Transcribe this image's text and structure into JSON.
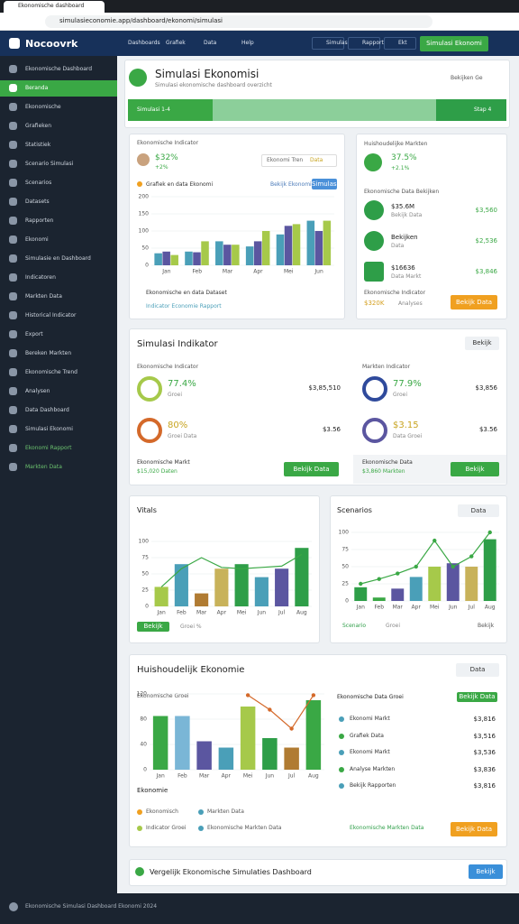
{
  "browser": {
    "tab": "Ekonomische dashboard",
    "url": "simulasieconomie.app/dashboard/ekonomi/simulasi"
  },
  "nav": {
    "brand": "Nocoovrk",
    "links": [
      "Dashboards",
      "Grafiek",
      "Data",
      "Help"
    ],
    "actions": [
      "Simulasi",
      "Rapport",
      "Ekt"
    ],
    "cta": "Simulasi Ekonomi"
  },
  "sidebar": {
    "active": 1,
    "items": [
      "Ekonomische Dashboard",
      "Beranda",
      "Ekonomische",
      "Grafieken",
      "Statistiek",
      "Scenario Simulasi",
      "Scenarios",
      "Datasets",
      "Rapporten",
      "Ekonomi",
      "Simulasie en Dashboard",
      "Indicatoren",
      "Markten Data",
      "Historical Indicator",
      "Export",
      "Bereken Markten",
      "Ekonomische Trend",
      "Analysen",
      "Data Dashboard",
      "Simulasi Ekonomi",
      "Ekonomi Rapport",
      "Markten Data"
    ]
  },
  "header": {
    "title": "Simulasi Ekonomisi",
    "subtitle": "Simulasi ekonomische dashboard overzicht",
    "link": "Bekijken Ge",
    "progress": {
      "start": "Simulasi 1-4",
      "end": "Stap 4"
    }
  },
  "indicator": {
    "title": "Ekonomische Indicator",
    "value": "$32%",
    "change": "+2%",
    "filter": [
      "Ekonomi Tren",
      "Data"
    ],
    "legend": "Grafiek en data Ekonomi",
    "select": "Bekijk Ekonomi",
    "button": "Simulasi",
    "notes": [
      "Ekonomische en data Dataset",
      "Indicator Economie Rapport"
    ],
    "chart": {
      "categories": [
        "Jan",
        "Feb",
        "Mar",
        "Apr",
        "Mei",
        "Jun"
      ],
      "values": [
        [
          35,
          40,
          30
        ],
        [
          40,
          38,
          70
        ],
        [
          70,
          60,
          60
        ],
        [
          55,
          70,
          100
        ],
        [
          90,
          115,
          120
        ],
        [
          130,
          100,
          130
        ]
      ],
      "colors": [
        "#4a9fb8",
        "#5b56a0",
        "#a6c94a"
      ],
      "ylim": [
        0,
        200
      ],
      "yticks": [
        0,
        50,
        100,
        150,
        200
      ]
    }
  },
  "markets": {
    "title": "Huishoudelijke Markten",
    "value": "37.5%",
    "change": "+2.1%",
    "subtitle": "Ekonomische Data Bekijken",
    "rows": [
      {
        "label": "$35.6M",
        "sub": "Bekijk Data",
        "value": "$3,560"
      },
      {
        "label": "Bekijken",
        "sub": "Data",
        "value": "$2,536"
      },
      {
        "label": "$16636",
        "sub": "Data Markt",
        "value": "$3,846"
      }
    ],
    "footer": {
      "label": "Ekonomische Indicator",
      "value": "$320K",
      "sub": "Analyses",
      "button": "Bekijk Data"
    }
  },
  "simulasi": {
    "title": "Simulasi Indikator",
    "button": "Bekijk",
    "left": {
      "title": "Ekonomische Indicator",
      "items": [
        {
          "value": "77.4%",
          "sub": "Groei",
          "amount": "$3,85,510"
        },
        {
          "value": "80%",
          "sub": "Groei Data",
          "amount": "$3.56"
        }
      ],
      "note": "Ekonomische Markt",
      "subnote": "$15,020 Daten",
      "button": "Bekijk Data"
    },
    "right": {
      "title": "Markten Indicator",
      "items": [
        {
          "value": "77.9%",
          "sub": "Groei",
          "amount": "$3,856"
        },
        {
          "value": "$3.15",
          "sub": "Data Groei",
          "amount": "$3.56"
        }
      ],
      "note": "Ekonomische Data",
      "subnote": "$3,860 Markten",
      "button": "Bekijk"
    }
  },
  "vitals": {
    "title": "Vitals",
    "button": "Bekijk",
    "sub": "Groei %",
    "chart": {
      "categories": [
        "Jan",
        "Feb",
        "Mar",
        "Apr",
        "Mei",
        "Jun",
        "Jul",
        "Aug"
      ],
      "values": [
        30,
        65,
        20,
        58,
        65,
        45,
        58,
        90
      ],
      "colors": [
        "#a6c94a",
        "#4a9fb8",
        "#b07b32",
        "#c8b25a",
        "#2e9e48",
        "#4a9fb8",
        "#5b56a0",
        "#2e9e48"
      ],
      "ylim": [
        0,
        100
      ],
      "yticks": [
        0,
        25,
        50,
        75,
        100
      ],
      "line": [
        30,
        58,
        75,
        60,
        58,
        60,
        62,
        80
      ],
      "lineColor": "#3aa845"
    }
  },
  "scenarios": {
    "title": "Scenarios",
    "filter": "Data",
    "button": "Scenario",
    "sub": "Groei",
    "right": "Bekijk",
    "chart": {
      "categories": [
        "Jan",
        "Feb",
        "Mar",
        "Apr",
        "Mei",
        "Jun",
        "Jul",
        "Aug"
      ],
      "values": [
        20,
        5,
        18,
        35,
        50,
        55,
        50,
        90
      ],
      "colors": [
        "#2e9e48",
        "#3aa845",
        "#5b56a0",
        "#4a9fb8",
        "#a6c94a",
        "#5b56a0",
        "#c8b25a",
        "#2e9e48"
      ],
      "ylim": [
        0,
        100
      ],
      "yticks": [
        0,
        25,
        50,
        75,
        100
      ],
      "line": [
        25,
        32,
        40,
        50,
        88,
        50,
        65,
        100
      ],
      "lineColor": "#3aa845",
      "dots": true
    }
  },
  "household": {
    "title": "Huishoudelijk Ekonomie",
    "filter": "Data",
    "chartTitle": "Ekonomische Groei",
    "label": "Ekonomie",
    "chart": {
      "categories": [
        "Jan",
        "Feb",
        "Mar",
        "Apr",
        "Mei",
        "Jun",
        "Jul",
        "Aug"
      ],
      "values": [
        85,
        85,
        45,
        35,
        100,
        50,
        35,
        110
      ],
      "colors": [
        "#3aa845",
        "#7ab6d6",
        "#5b56a0",
        "#4a9fb8",
        "#a6c94a",
        "#2e9e48",
        "#b07b32",
        "#3aa845"
      ],
      "ylim": [
        0,
        120
      ],
      "yticks": [
        0,
        40,
        80,
        120
      ],
      "line": [
        null,
        null,
        null,
        null,
        118,
        95,
        65,
        118
      ],
      "lineColor": "#d4692a",
      "dots": true
    },
    "legend": [
      "Ekonomisch",
      "Markten Data",
      "Indicator Groei",
      "Ekonomische Markten Data"
    ],
    "listTitle": "Ekonomische Data Groei",
    "tag": "Bekijk Data",
    "rows": [
      {
        "label": "Ekonomi Markt",
        "value": "$3,816"
      },
      {
        "label": "Grafiek Data",
        "value": "$3,516"
      },
      {
        "label": "Ekonomi Markt",
        "value": "$3,536"
      },
      {
        "label": "Analyse Markten",
        "value": "$3,836"
      },
      {
        "label": "Bekijk Rapporten",
        "value": "$3,816"
      }
    ],
    "note": "Ekonomische Markten Data",
    "button": "Bekijk Data"
  },
  "footerbar": {
    "text": "Vergelijk Ekonomische Simulaties Dashboard",
    "button": "Bekijk"
  },
  "statusbar": {
    "text": "Ekonomische Simulasi Dashboard Ekonomi 2024"
  }
}
